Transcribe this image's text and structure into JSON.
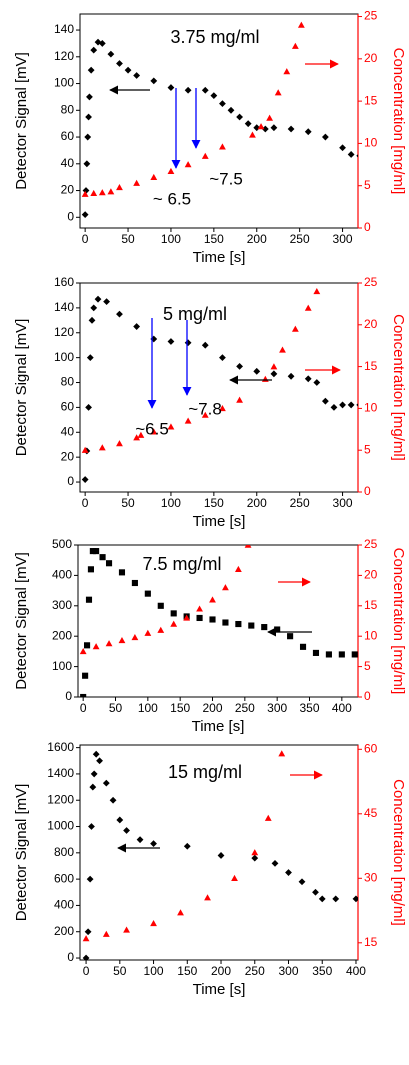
{
  "chart_data": [
    {
      "type": "scatter",
      "ylabel": "Detector Signal [mV]",
      "y2label": "Concentration [mg/ml]",
      "xlabel": "Time [s]",
      "annotations": [
        "3.75 mg/ml",
        "~ 6.5",
        "~7.5"
      ],
      "xlim": [
        -6,
        318
      ],
      "xticks": [
        0,
        50,
        100,
        150,
        200,
        250,
        300
      ],
      "ylim": [
        -8,
        152
      ],
      "yticks": [
        0,
        20,
        40,
        60,
        80,
        100,
        120,
        140
      ],
      "y2lim": [
        0,
        25.3
      ],
      "y2ticks": [
        0,
        5,
        10,
        15,
        20,
        25
      ],
      "series": [
        {
          "color": "#000000",
          "marker": "diamond",
          "axis": "y",
          "x": [
            0,
            1,
            2,
            3,
            4,
            5,
            7,
            10,
            15,
            20,
            30,
            40,
            50,
            60,
            80,
            100,
            120,
            140,
            150,
            160,
            170,
            180,
            190,
            200,
            210,
            220,
            240,
            260,
            280,
            300,
            310,
            320
          ],
          "values": [
            2,
            20,
            40,
            60,
            75,
            90,
            110,
            125,
            131,
            130,
            122,
            115,
            110,
            106,
            102,
            97,
            95,
            95,
            91,
            85,
            80,
            75,
            70,
            67,
            66,
            67,
            66,
            64,
            60,
            52,
            47,
            46
          ]
        },
        {
          "color": "#ff0000",
          "marker": "triangle",
          "axis": "y2",
          "x": [
            0,
            10,
            20,
            30,
            40,
            60,
            80,
            100,
            120,
            140,
            160,
            195,
            205,
            215,
            225,
            235,
            245,
            252
          ],
          "values": [
            4,
            4.1,
            4.2,
            4.3,
            4.8,
            5.3,
            6,
            6.7,
            7.5,
            8.5,
            9.6,
            11,
            12,
            13,
            16,
            18.5,
            21.5,
            24
          ]
        }
      ]
    },
    {
      "type": "scatter",
      "ylabel": "Detector Signal [mV]",
      "y2label": "Concentration [mg/ml]",
      "xlabel": "Time [s]",
      "annotations": [
        "5 mg/ml",
        "~6.5",
        "~7.8"
      ],
      "xlim": [
        -6,
        318
      ],
      "xticks": [
        0,
        50,
        100,
        150,
        200,
        250,
        300
      ],
      "ylim": [
        -8,
        160
      ],
      "yticks": [
        0,
        20,
        40,
        60,
        80,
        100,
        120,
        140,
        160
      ],
      "y2lim": [
        0,
        25
      ],
      "y2ticks": [
        0,
        5,
        10,
        15,
        20,
        25
      ],
      "series": [
        {
          "color": "#000000",
          "marker": "diamond",
          "axis": "y",
          "x": [
            0,
            2,
            4,
            6,
            8,
            10,
            15,
            25,
            40,
            60,
            80,
            100,
            120,
            140,
            160,
            180,
            200,
            220,
            240,
            260,
            270,
            280,
            290,
            300,
            310,
            320
          ],
          "values": [
            2,
            25,
            60,
            100,
            130,
            140,
            147,
            145,
            135,
            125,
            115,
            113,
            112,
            110,
            100,
            93,
            89,
            87,
            85,
            83,
            80,
            65,
            60,
            62,
            62,
            62
          ]
        },
        {
          "color": "#ff0000",
          "marker": "triangle",
          "axis": "y2",
          "x": [
            0,
            20,
            40,
            60,
            65,
            80,
            100,
            120,
            140,
            160,
            180,
            210,
            220,
            230,
            245,
            260,
            270
          ],
          "values": [
            5,
            5.3,
            5.8,
            6.5,
            6.8,
            7.2,
            7.8,
            8.5,
            9.2,
            10,
            11,
            13.5,
            15,
            17,
            19.5,
            22,
            24
          ]
        }
      ]
    },
    {
      "type": "scatter",
      "ylabel": "Detector Signal [mV]",
      "y2label": "Concentration [mg/ml]",
      "xlabel": "Time [s]",
      "annotations": [
        "7.5 mg/ml"
      ],
      "xlim": [
        -8,
        425
      ],
      "xticks": [
        0,
        50,
        100,
        150,
        200,
        250,
        300,
        350,
        400
      ],
      "ylim": [
        0,
        500
      ],
      "yticks": [
        0,
        100,
        200,
        300,
        400,
        500
      ],
      "y2lim": [
        0,
        25
      ],
      "y2ticks": [
        0,
        5,
        10,
        15,
        20,
        25
      ],
      "series": [
        {
          "color": "#000000",
          "marker": "square",
          "axis": "y",
          "x": [
            0,
            3,
            6,
            9,
            12,
            15,
            20,
            30,
            40,
            60,
            80,
            100,
            120,
            140,
            160,
            180,
            200,
            220,
            240,
            260,
            280,
            300,
            320,
            340,
            360,
            380,
            400,
            420
          ],
          "values": [
            0,
            70,
            170,
            320,
            420,
            480,
            480,
            460,
            440,
            410,
            375,
            340,
            300,
            275,
            265,
            260,
            255,
            245,
            240,
            235,
            230,
            222,
            200,
            165,
            145,
            140,
            140,
            140
          ]
        },
        {
          "color": "#ff0000",
          "marker": "triangle",
          "axis": "y2",
          "x": [
            0,
            20,
            40,
            60,
            80,
            100,
            120,
            140,
            160,
            180,
            200,
            220,
            240,
            255
          ],
          "values": [
            7.5,
            8.3,
            8.8,
            9.3,
            9.8,
            10.5,
            11,
            12,
            13,
            14.5,
            16,
            18,
            21,
            25
          ]
        }
      ]
    },
    {
      "type": "scatter",
      "ylabel": "Detector Signal [mV]",
      "y2label": "Concentration [mg/ml]",
      "xlabel": "Time [s]",
      "annotations": [
        "15 mg/ml"
      ],
      "xlim": [
        -9,
        403
      ],
      "xticks": [
        0,
        50,
        100,
        150,
        200,
        250,
        300,
        350,
        400
      ],
      "ylim": [
        -15,
        1620
      ],
      "yticks": [
        0,
        200,
        400,
        600,
        800,
        1000,
        1200,
        1400,
        1600
      ],
      "y2lim": [
        11,
        61
      ],
      "y2ticks": [
        15,
        30,
        45,
        60
      ],
      "series": [
        {
          "color": "#000000",
          "marker": "diamond",
          "axis": "y",
          "x": [
            0,
            3,
            6,
            8,
            10,
            12,
            15,
            20,
            30,
            40,
            50,
            60,
            80,
            100,
            150,
            200,
            250,
            280,
            300,
            320,
            340,
            350,
            370,
            400
          ],
          "values": [
            0,
            200,
            600,
            1000,
            1300,
            1400,
            1550,
            1500,
            1330,
            1200,
            1050,
            970,
            900,
            870,
            850,
            780,
            760,
            720,
            650,
            580,
            500,
            450,
            450,
            450
          ]
        },
        {
          "color": "#ff0000",
          "marker": "triangle",
          "axis": "y2",
          "x": [
            0,
            30,
            60,
            100,
            140,
            180,
            220,
            250,
            270,
            290
          ],
          "values": [
            16,
            17,
            18,
            19.5,
            22,
            25.5,
            30,
            36,
            44,
            59
          ]
        }
      ]
    }
  ]
}
